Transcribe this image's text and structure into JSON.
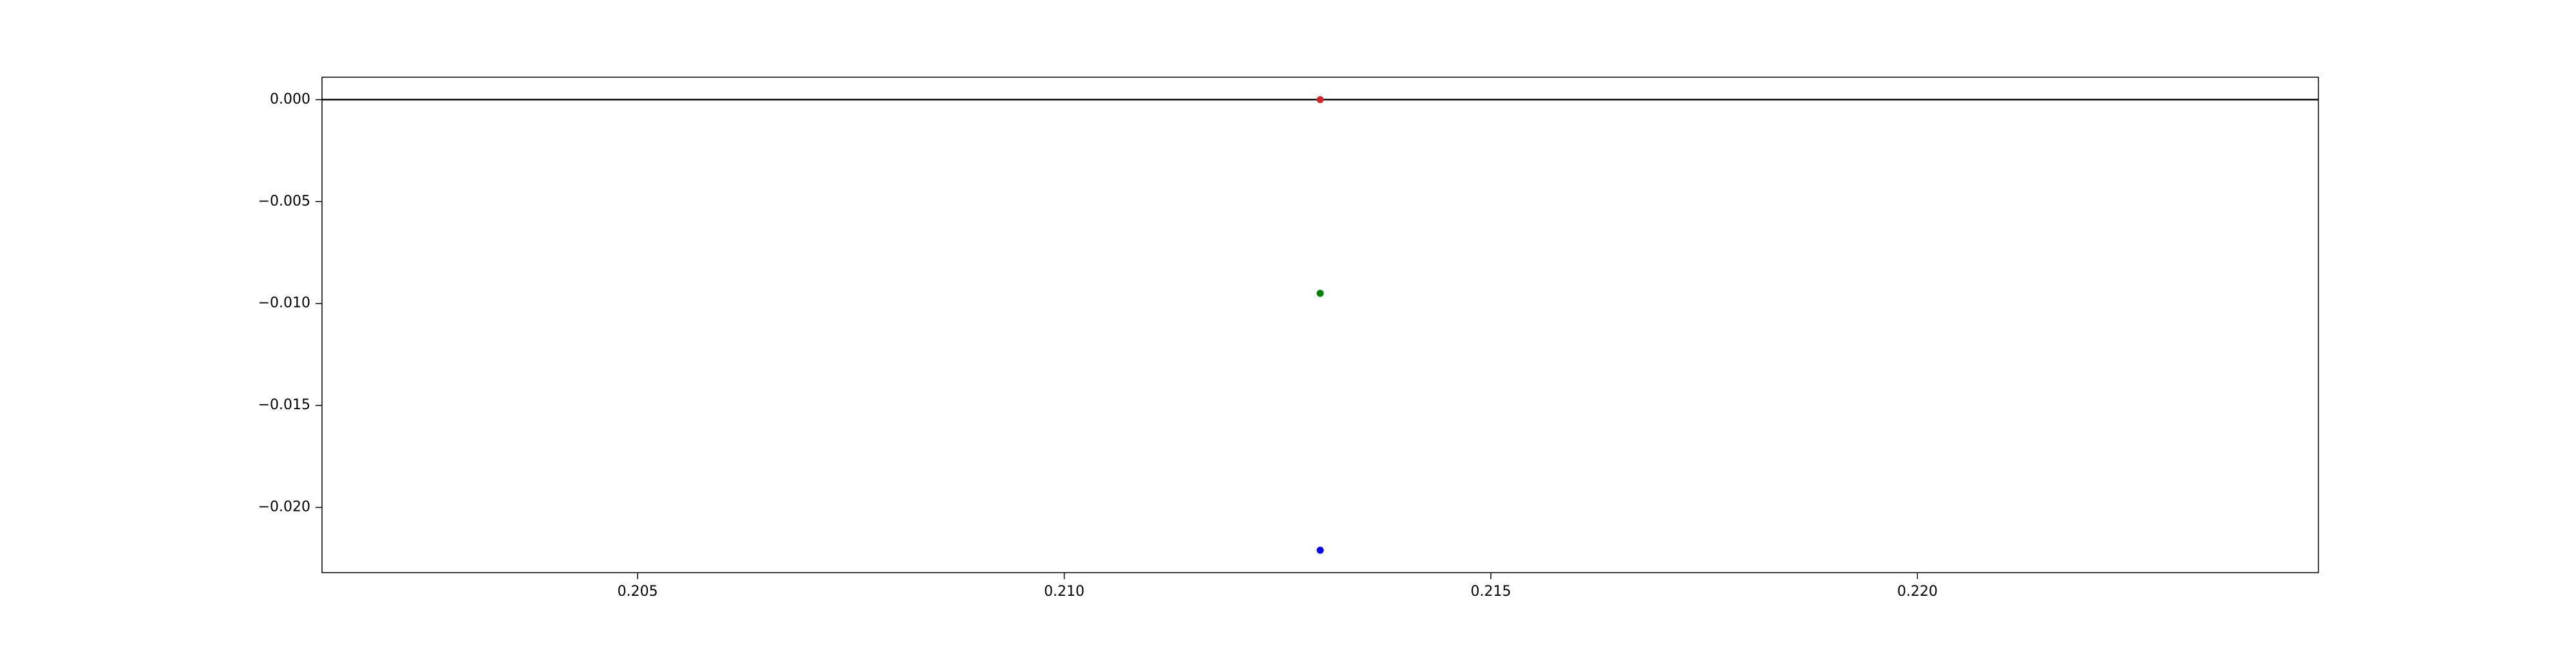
{
  "chart_data": {
    "type": "scatter",
    "title": "",
    "xlabel": "",
    "ylabel": "",
    "xlim": [
      0.2013,
      0.2247
    ],
    "ylim": [
      -0.0232,
      0.0011
    ],
    "grid": false,
    "x_ticks": [
      {
        "value": 0.205,
        "label": "0.205"
      },
      {
        "value": 0.21,
        "label": "0.210"
      },
      {
        "value": 0.215,
        "label": "0.215"
      },
      {
        "value": 0.22,
        "label": "0.220"
      }
    ],
    "y_ticks": [
      {
        "value": 0.0,
        "label": "0.000"
      },
      {
        "value": -0.005,
        "label": "−0.005"
      },
      {
        "value": -0.01,
        "label": "−0.010"
      },
      {
        "value": -0.015,
        "label": "−0.015"
      },
      {
        "value": -0.02,
        "label": "−0.020"
      }
    ],
    "reference_lines": [
      {
        "orientation": "horizontal",
        "y": 0.0,
        "color": "#000000"
      }
    ],
    "points": [
      {
        "x": 0.213,
        "y": 0.0,
        "color": "#d62728"
      },
      {
        "x": 0.213,
        "y": -0.0095,
        "color": "#008000"
      },
      {
        "x": 0.213,
        "y": -0.0221,
        "color": "#0000ff"
      }
    ]
  }
}
